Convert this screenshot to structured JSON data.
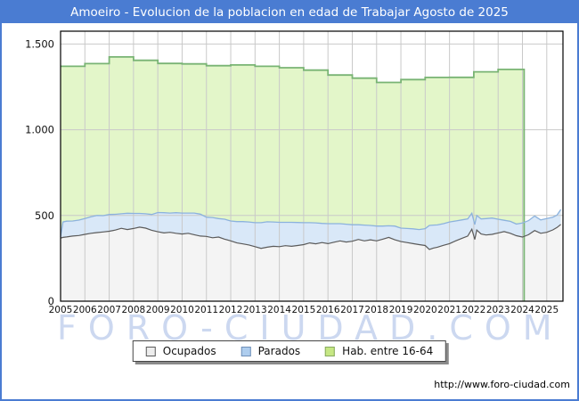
{
  "title_bar": {
    "text": "Amoeiro - Evolucion de la poblacion en edad de Trabajar Agosto de 2025",
    "background": "#4a7cd2",
    "text_color": "#ffffff"
  },
  "watermark": {
    "text": "FORO-CIUDAD.COM",
    "color": "#ccd8f0"
  },
  "footer": {
    "url": "http://www.foro-ciudad.com"
  },
  "legend": {
    "items": [
      {
        "label": "Ocupados",
        "fill": "#ededed",
        "border": "#5a5a5a"
      },
      {
        "label": "Parados",
        "fill": "#aecdee",
        "border": "#7090b8"
      },
      {
        "label": "Hab. entre 16-64",
        "fill": "#c6e784",
        "border": "#87a95f"
      }
    ]
  },
  "chart_data": {
    "type": "area",
    "title": "Amoeiro - Evolucion de la poblacion en edad de Trabajar Agosto de 2025",
    "xlabel": "",
    "ylabel": "",
    "grid": true,
    "legend_position": "bottom",
    "x_axis": {
      "min": 2005,
      "max": 2025.667,
      "ticks": [
        2005,
        2006,
        2007,
        2008,
        2009,
        2010,
        2011,
        2012,
        2013,
        2014,
        2015,
        2016,
        2017,
        2018,
        2019,
        2020,
        2021,
        2022,
        2023,
        2024,
        2025
      ]
    },
    "y_axis": {
      "min": 0,
      "max": 1575,
      "ticks": [
        {
          "value": 0,
          "label": "0"
        },
        {
          "value": 500,
          "label": "500"
        },
        {
          "value": 1000,
          "label": "1.000"
        },
        {
          "value": 1500,
          "label": "1.500"
        }
      ]
    },
    "hab_16_64": {
      "name": "Hab. entre 16-64",
      "style": "step_area",
      "fill": "#e3f6c9",
      "stroke": "#79b474",
      "years": [
        2005,
        2006,
        2007,
        2008,
        2009,
        2010,
        2011,
        2012,
        2013,
        2014,
        2015,
        2016,
        2017,
        2018,
        2019,
        2020,
        2021,
        2022,
        2023
      ],
      "values": [
        1370,
        1386,
        1425,
        1405,
        1387,
        1384,
        1374,
        1378,
        1370,
        1362,
        1348,
        1319,
        1301,
        1276,
        1293,
        1305,
        1306,
        1338,
        1352
      ],
      "end_x": 2024.07
    },
    "x": [
      2005.0,
      2005.1,
      2005.25,
      2005.5,
      2005.75,
      2006.0,
      2006.25,
      2006.5,
      2006.75,
      2007.0,
      2007.25,
      2007.5,
      2007.75,
      2008.0,
      2008.25,
      2008.5,
      2008.75,
      2009.0,
      2009.25,
      2009.5,
      2009.75,
      2010.0,
      2010.25,
      2010.5,
      2010.75,
      2011.0,
      2011.25,
      2011.5,
      2011.75,
      2012.0,
      2012.25,
      2012.5,
      2012.75,
      2013.0,
      2013.25,
      2013.5,
      2013.75,
      2014.0,
      2014.25,
      2014.5,
      2014.75,
      2015.0,
      2015.25,
      2015.5,
      2015.75,
      2016.0,
      2016.25,
      2016.5,
      2016.75,
      2017.0,
      2017.25,
      2017.5,
      2017.75,
      2018.0,
      2018.25,
      2018.5,
      2018.75,
      2019.0,
      2019.25,
      2019.5,
      2019.75,
      2020.0,
      2020.17,
      2020.33,
      2020.5,
      2020.75,
      2021.0,
      2021.25,
      2021.5,
      2021.75,
      2021.92,
      2022.04,
      2022.12,
      2022.3,
      2022.5,
      2022.75,
      2023.0,
      2023.25,
      2023.5,
      2023.75,
      2024.0,
      2024.25,
      2024.5,
      2024.75,
      2025.0,
      2025.25,
      2025.42,
      2025.58
    ],
    "ocupados": {
      "name": "Ocupados",
      "fill": "#f4f4f4",
      "stroke": "#5a5a5a",
      "values": [
        368,
        372,
        375,
        380,
        383,
        390,
        396,
        400,
        404,
        408,
        415,
        425,
        418,
        424,
        432,
        426,
        414,
        405,
        398,
        402,
        396,
        392,
        396,
        388,
        380,
        378,
        370,
        374,
        362,
        352,
        340,
        334,
        328,
        318,
        308,
        315,
        320,
        318,
        324,
        320,
        325,
        330,
        340,
        335,
        342,
        336,
        344,
        352,
        345,
        350,
        360,
        352,
        358,
        352,
        362,
        372,
        358,
        348,
        342,
        336,
        330,
        325,
        302,
        310,
        315,
        326,
        336,
        352,
        366,
        380,
        420,
        360,
        415,
        392,
        386,
        390,
        398,
        406,
        396,
        382,
        374,
        388,
        412,
        396,
        402,
        416,
        430,
        448
      ]
    },
    "parados": {
      "name": "Parados",
      "stacked_on": "Ocupados",
      "fill": "#d9e8f8",
      "stroke": "#8cb2dd",
      "values": [
        8,
        90,
        92,
        88,
        90,
        92,
        96,
        100,
        95,
        98,
        92,
        85,
        95,
        88,
        80,
        84,
        92,
        112,
        118,
        112,
        120,
        122,
        118,
        126,
        128,
        112,
        118,
        108,
        116,
        116,
        124,
        130,
        134,
        140,
        150,
        148,
        142,
        142,
        136,
        140,
        134,
        128,
        118,
        122,
        112,
        116,
        108,
        100,
        104,
        96,
        86,
        92,
        84,
        86,
        76,
        68,
        80,
        78,
        82,
        86,
        88,
        98,
        140,
        134,
        130,
        126,
        126,
        116,
        108,
        100,
        93,
        87,
        85,
        88,
        96,
        95,
        80,
        66,
        70,
        68,
        82,
        82,
        85,
        78,
        80,
        74,
        72,
        87
      ]
    }
  }
}
